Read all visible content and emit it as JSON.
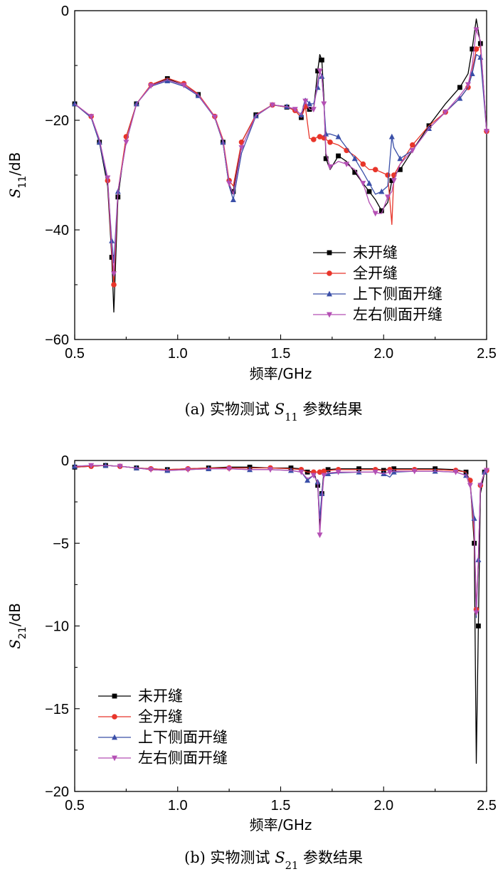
{
  "chart_data": [
    {
      "type": "line",
      "panel": "a",
      "caption": "(a) 实物测试 S11 参数结果",
      "caption_prefix": "(a) 实物测试 ",
      "caption_symbol": "S",
      "caption_sub": "11",
      "caption_suffix": " 参数结果",
      "xlabel": "频率/GHz",
      "ylabel": "S11/dB",
      "ylabel_symbol": "S",
      "ylabel_sub": "11",
      "ylabel_unit": "/dB",
      "xlim": [
        0.5,
        2.5
      ],
      "ylim": [
        -60,
        0
      ],
      "xticks": [
        0.5,
        1.0,
        1.5,
        2.0,
        2.5
      ],
      "xtick_labels": [
        "0.5",
        "1.0",
        "1.5",
        "2.0",
        "2.5"
      ],
      "yticks": [
        -60,
        -40,
        -20,
        0
      ],
      "ytick_labels": [
        "−60",
        "−40",
        "−20",
        "0"
      ],
      "grid": false,
      "legend_position": "bottom-right",
      "series": [
        {
          "name": "未开缝",
          "color": "#000000",
          "marker": "square",
          "x": [
            0.5,
            0.58,
            0.62,
            0.66,
            0.68,
            0.69,
            0.71,
            0.75,
            0.8,
            0.87,
            0.95,
            1.03,
            1.1,
            1.18,
            1.22,
            1.25,
            1.27,
            1.31,
            1.38,
            1.46,
            1.53,
            1.57,
            1.6,
            1.62,
            1.64,
            1.66,
            1.68,
            1.69,
            1.7,
            1.71,
            1.72,
            1.74,
            1.78,
            1.82,
            1.86,
            1.9,
            1.93,
            1.96,
            1.99,
            2.02,
            2.04,
            2.05,
            2.08,
            2.14,
            2.22,
            2.3,
            2.37,
            2.41,
            2.43,
            2.45,
            2.47,
            2.5
          ],
          "y": [
            -17,
            -19.5,
            -24,
            -32,
            -45,
            -55,
            -34,
            -23,
            -17,
            -13.6,
            -12.4,
            -13.6,
            -15.3,
            -19.5,
            -24,
            -32,
            -33,
            -24,
            -19,
            -17.2,
            -17.6,
            -18.2,
            -19.5,
            -17,
            -18,
            -18,
            -11,
            -8,
            -9,
            -16,
            -27,
            -29,
            -26.5,
            -27.5,
            -29.5,
            -31.5,
            -33,
            -34.5,
            -36.5,
            -35,
            -31,
            -30,
            -29,
            -25.5,
            -21,
            -17,
            -14,
            -11.5,
            -7,
            -1.5,
            -6,
            -22
          ]
        },
        {
          "name": "全开缝",
          "color": "#e8352a",
          "marker": "circle",
          "x": [
            0.5,
            0.58,
            0.62,
            0.66,
            0.68,
            0.69,
            0.71,
            0.75,
            0.8,
            0.87,
            0.95,
            1.03,
            1.1,
            1.18,
            1.22,
            1.25,
            1.27,
            1.31,
            1.38,
            1.46,
            1.53,
            1.57,
            1.6,
            1.62,
            1.64,
            1.66,
            1.68,
            1.69,
            1.7,
            1.71,
            1.72,
            1.74,
            1.78,
            1.82,
            1.86,
            1.9,
            1.93,
            1.96,
            1.99,
            2.02,
            2.04,
            2.05,
            2.08,
            2.14,
            2.22,
            2.3,
            2.37,
            2.41,
            2.43,
            2.45,
            2.47,
            2.5
          ],
          "y": [
            -17,
            -19.3,
            -23.5,
            -31,
            -44,
            -50,
            -33,
            -23,
            -17,
            -13.5,
            -12.3,
            -13.3,
            -15.2,
            -19.3,
            -23.5,
            -31,
            -32,
            -24,
            -19,
            -17.2,
            -17.6,
            -18.2,
            -19.5,
            -17.5,
            -23.3,
            -23.5,
            -23,
            -23,
            -23,
            -23.2,
            -23.5,
            -24,
            -24.5,
            -25.5,
            -26.5,
            -28,
            -29,
            -29,
            -29.5,
            -30,
            -39,
            -30,
            -28,
            -24.5,
            -21,
            -18.5,
            -16,
            -14,
            -11,
            -7,
            -6.5,
            -22
          ]
        },
        {
          "name": "上下侧面开缝",
          "color": "#3a4fa8",
          "marker": "triangle-up",
          "x": [
            0.5,
            0.58,
            0.62,
            0.66,
            0.68,
            0.69,
            0.71,
            0.75,
            0.8,
            0.87,
            0.95,
            1.03,
            1.1,
            1.18,
            1.22,
            1.25,
            1.27,
            1.31,
            1.38,
            1.46,
            1.53,
            1.57,
            1.6,
            1.62,
            1.64,
            1.66,
            1.68,
            1.69,
            1.7,
            1.71,
            1.72,
            1.74,
            1.78,
            1.82,
            1.86,
            1.9,
            1.93,
            1.96,
            1.99,
            2.02,
            2.04,
            2.05,
            2.08,
            2.14,
            2.22,
            2.3,
            2.37,
            2.41,
            2.43,
            2.45,
            2.47,
            2.5
          ],
          "y": [
            -17,
            -19.5,
            -24,
            -31,
            -42,
            -46,
            -33,
            -24,
            -17,
            -13.8,
            -12.8,
            -13.8,
            -15.5,
            -19.5,
            -24,
            -32,
            -34.5,
            -26,
            -19.2,
            -17.2,
            -17.5,
            -18,
            -19,
            -16,
            -17,
            -17,
            -14,
            -11,
            -12,
            -17,
            -22.5,
            -22.5,
            -23,
            -25,
            -27,
            -29.5,
            -31.5,
            -33.5,
            -33,
            -32,
            -23,
            -25,
            -27,
            -25.5,
            -21.5,
            -18.5,
            -16,
            -14,
            -11.5,
            -8,
            -8.5,
            -22
          ]
        },
        {
          "name": "左右侧面开缝",
          "color": "#b44fb4",
          "marker": "triangle-down",
          "x": [
            0.5,
            0.58,
            0.62,
            0.66,
            0.68,
            0.69,
            0.71,
            0.75,
            0.8,
            0.87,
            0.95,
            1.03,
            1.1,
            1.18,
            1.22,
            1.25,
            1.27,
            1.31,
            1.38,
            1.46,
            1.53,
            1.57,
            1.6,
            1.62,
            1.64,
            1.66,
            1.68,
            1.69,
            1.7,
            1.71,
            1.72,
            1.74,
            1.78,
            1.82,
            1.86,
            1.9,
            1.93,
            1.96,
            1.99,
            2.02,
            2.04,
            2.05,
            2.08,
            2.14,
            2.22,
            2.3,
            2.37,
            2.41,
            2.43,
            2.45,
            2.47,
            2.5
          ],
          "y": [
            -17,
            -19.3,
            -23.5,
            -30.5,
            -43,
            -48,
            -33,
            -24,
            -17,
            -13.7,
            -12.6,
            -13.6,
            -15.4,
            -19.4,
            -23.8,
            -31.5,
            -33.5,
            -25,
            -19.1,
            -17.2,
            -17.5,
            -18,
            -19,
            -16.5,
            -18,
            -18,
            -13,
            -11,
            -12,
            -17,
            -26,
            -28.5,
            -27.5,
            -28,
            -29,
            -31.5,
            -35,
            -37,
            -37,
            -34,
            -33,
            -31,
            -28,
            -25.5,
            -21.5,
            -18.5,
            -15.5,
            -13.5,
            -10,
            -3.5,
            -5.5,
            -22
          ]
        }
      ]
    },
    {
      "type": "line",
      "panel": "b",
      "caption": "(b) 实物测试 S21 参数结果",
      "caption_prefix": "(b) 实物测试 ",
      "caption_symbol": "S",
      "caption_sub": "21",
      "caption_suffix": " 参数结果",
      "xlabel": "频率/GHz",
      "ylabel": "S21/dB",
      "ylabel_symbol": "S",
      "ylabel_sub": "21",
      "ylabel_unit": "/dB",
      "xlim": [
        0.5,
        2.5
      ],
      "ylim": [
        -20,
        0
      ],
      "xticks": [
        0.5,
        1.0,
        1.5,
        2.0,
        2.5
      ],
      "xtick_labels": [
        "0.5",
        "1.0",
        "1.5",
        "2.0",
        "2.5"
      ],
      "yticks": [
        -20,
        -15,
        -10,
        -5,
        0
      ],
      "ytick_labels": [
        "−20",
        "−15",
        "−10",
        "−5",
        "0"
      ],
      "grid": false,
      "legend_position": "bottom-left",
      "series": [
        {
          "name": "未开缝",
          "color": "#000000",
          "marker": "square",
          "x": [
            0.5,
            0.58,
            0.65,
            0.72,
            0.8,
            0.87,
            0.95,
            1.05,
            1.15,
            1.25,
            1.35,
            1.45,
            1.55,
            1.6,
            1.63,
            1.66,
            1.68,
            1.69,
            1.7,
            1.71,
            1.73,
            1.78,
            1.88,
            1.96,
            2.0,
            2.03,
            2.05,
            2.15,
            2.25,
            2.35,
            2.4,
            2.42,
            2.44,
            2.45,
            2.46,
            2.47,
            2.49,
            2.5
          ],
          "y": [
            -0.4,
            -0.35,
            -0.3,
            -0.35,
            -0.45,
            -0.5,
            -0.55,
            -0.5,
            -0.45,
            -0.4,
            -0.4,
            -0.45,
            -0.45,
            -0.5,
            -0.7,
            -0.65,
            -1.5,
            -4,
            -2,
            -0.65,
            -0.55,
            -0.5,
            -0.5,
            -0.5,
            -0.6,
            -0.5,
            -0.5,
            -0.5,
            -0.5,
            -0.55,
            -0.7,
            -1.2,
            -5,
            -18.3,
            -10,
            -2,
            -0.7,
            -0.6
          ]
        },
        {
          "name": "全开缝",
          "color": "#e8352a",
          "marker": "circle",
          "x": [
            0.5,
            0.58,
            0.65,
            0.72,
            0.8,
            0.87,
            0.95,
            1.05,
            1.15,
            1.25,
            1.35,
            1.45,
            1.55,
            1.6,
            1.63,
            1.66,
            1.68,
            1.69,
            1.7,
            1.71,
            1.73,
            1.78,
            1.88,
            1.96,
            2.0,
            2.03,
            2.05,
            2.15,
            2.25,
            2.35,
            2.4,
            2.42,
            2.44,
            2.45,
            2.46,
            2.47,
            2.49,
            2.5
          ],
          "y": [
            -0.4,
            -0.35,
            -0.3,
            -0.35,
            -0.45,
            -0.5,
            -0.55,
            -0.5,
            -0.45,
            -0.45,
            -0.45,
            -0.45,
            -0.5,
            -0.55,
            -0.7,
            -0.7,
            -0.7,
            -0.7,
            -0.7,
            -0.65,
            -0.6,
            -0.55,
            -0.55,
            -0.55,
            -0.6,
            -0.55,
            -0.55,
            -0.55,
            -0.55,
            -0.6,
            -0.7,
            -1.2,
            -4.5,
            -9,
            -6,
            -1.5,
            -0.7,
            -0.6
          ]
        },
        {
          "name": "上下侧面开缝",
          "color": "#3a4fa8",
          "marker": "triangle-up",
          "x": [
            0.5,
            0.58,
            0.65,
            0.72,
            0.8,
            0.87,
            0.95,
            1.05,
            1.15,
            1.25,
            1.35,
            1.45,
            1.55,
            1.6,
            1.63,
            1.66,
            1.68,
            1.69,
            1.7,
            1.71,
            1.73,
            1.78,
            1.88,
            1.96,
            2.0,
            2.03,
            2.05,
            2.15,
            2.25,
            2.35,
            2.4,
            2.42,
            2.44,
            2.45,
            2.46,
            2.47,
            2.49,
            2.5
          ],
          "y": [
            -0.35,
            -0.3,
            -0.3,
            -0.35,
            -0.45,
            -0.55,
            -0.6,
            -0.55,
            -0.5,
            -0.5,
            -0.55,
            -0.55,
            -0.6,
            -0.7,
            -1.2,
            -0.9,
            -1.3,
            -3.5,
            -2,
            -0.9,
            -0.8,
            -0.75,
            -0.7,
            -0.7,
            -0.8,
            -1,
            -0.7,
            -0.65,
            -0.65,
            -0.7,
            -0.9,
            -1.5,
            -3.5,
            -9.5,
            -6,
            -1.5,
            -0.7,
            -0.6
          ]
        },
        {
          "name": "左右侧面开缝",
          "color": "#b44fb4",
          "marker": "triangle-down",
          "x": [
            0.5,
            0.58,
            0.65,
            0.72,
            0.8,
            0.87,
            0.95,
            1.05,
            1.15,
            1.25,
            1.35,
            1.45,
            1.55,
            1.6,
            1.63,
            1.66,
            1.68,
            1.69,
            1.7,
            1.71,
            1.73,
            1.78,
            1.88,
            1.96,
            2.0,
            2.03,
            2.05,
            2.15,
            2.25,
            2.35,
            2.4,
            2.42,
            2.44,
            2.45,
            2.46,
            2.47,
            2.49,
            2.5
          ],
          "y": [
            -0.35,
            -0.3,
            -0.3,
            -0.35,
            -0.45,
            -0.55,
            -0.6,
            -0.55,
            -0.5,
            -0.5,
            -0.55,
            -0.55,
            -0.6,
            -0.7,
            -1.1,
            -0.9,
            -1.3,
            -4.5,
            -2.5,
            -0.9,
            -0.75,
            -0.7,
            -0.7,
            -0.7,
            -0.8,
            -0.7,
            -0.65,
            -0.65,
            -0.65,
            -0.7,
            -0.9,
            -1.5,
            -4,
            -9.2,
            -6,
            -1.5,
            -0.7,
            -0.6
          ]
        }
      ]
    }
  ]
}
